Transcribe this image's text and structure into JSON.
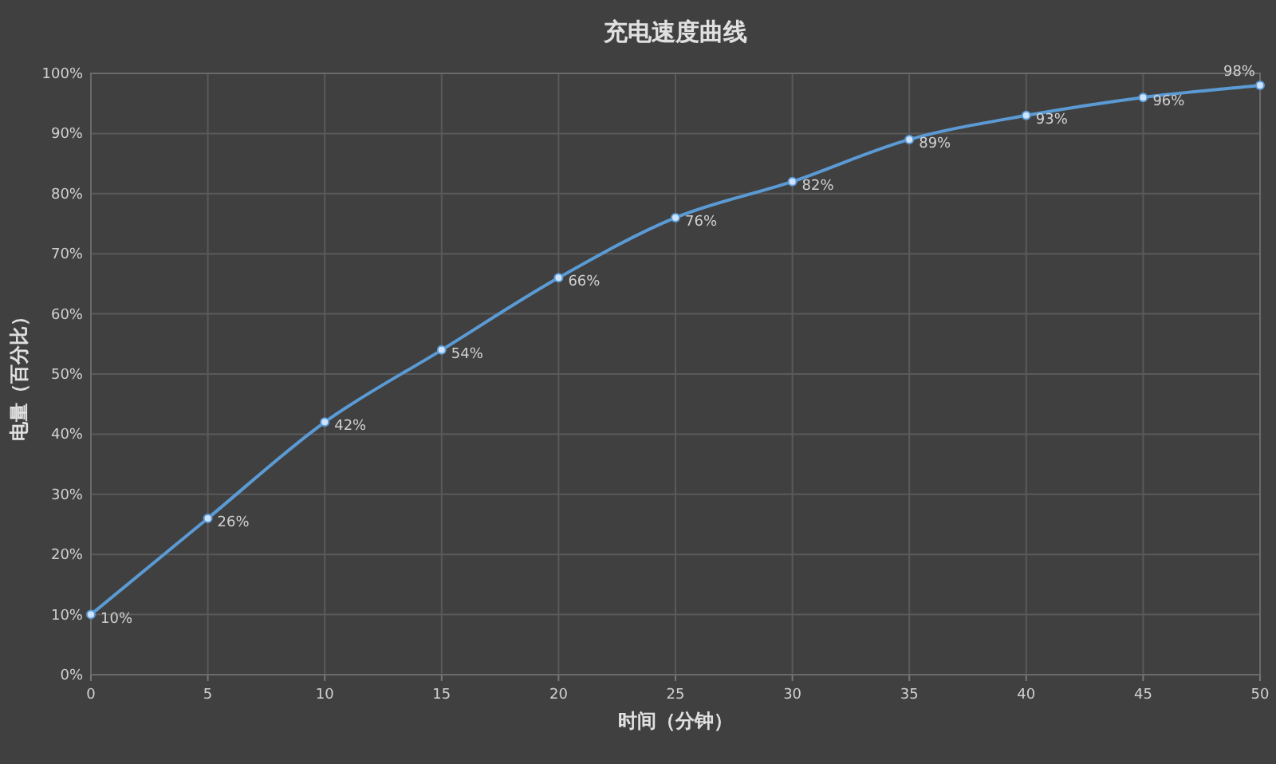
{
  "chart_data": {
    "type": "line",
    "title": "充电速度曲线",
    "xlabel": "时间（分钟）",
    "ylabel": "电量（百分比）",
    "x": [
      0,
      5,
      10,
      15,
      20,
      25,
      30,
      35,
      40,
      45,
      50
    ],
    "series": [
      {
        "color": "#5b9bd5",
        "values": [
          10,
          26,
          42,
          54,
          66,
          76,
          82,
          89,
          93,
          96,
          98
        ],
        "value_labels": [
          "10%",
          "26%",
          "42%",
          "54%",
          "66%",
          "76%",
          "82%",
          "89%",
          "93%",
          "96%",
          "98%"
        ]
      }
    ],
    "xlim": [
      0,
      50
    ],
    "ylim": [
      0,
      100
    ],
    "xticks": [
      0,
      5,
      10,
      15,
      20,
      25,
      30,
      35,
      40,
      45,
      50
    ],
    "yticks": [
      {
        "value": 0,
        "label": "0%"
      },
      {
        "value": 10,
        "label": "10%"
      },
      {
        "value": 20,
        "label": "20%"
      },
      {
        "value": 30,
        "label": "30%"
      },
      {
        "value": 40,
        "label": "40%"
      },
      {
        "value": 50,
        "label": "50%"
      },
      {
        "value": 60,
        "label": "60%"
      },
      {
        "value": 70,
        "label": "70%"
      },
      {
        "value": 80,
        "label": "80%"
      },
      {
        "value": 90,
        "label": "90%"
      },
      {
        "value": 100,
        "label": "100%"
      }
    ],
    "grid": true,
    "marker": "circle",
    "line_style": "solid"
  }
}
